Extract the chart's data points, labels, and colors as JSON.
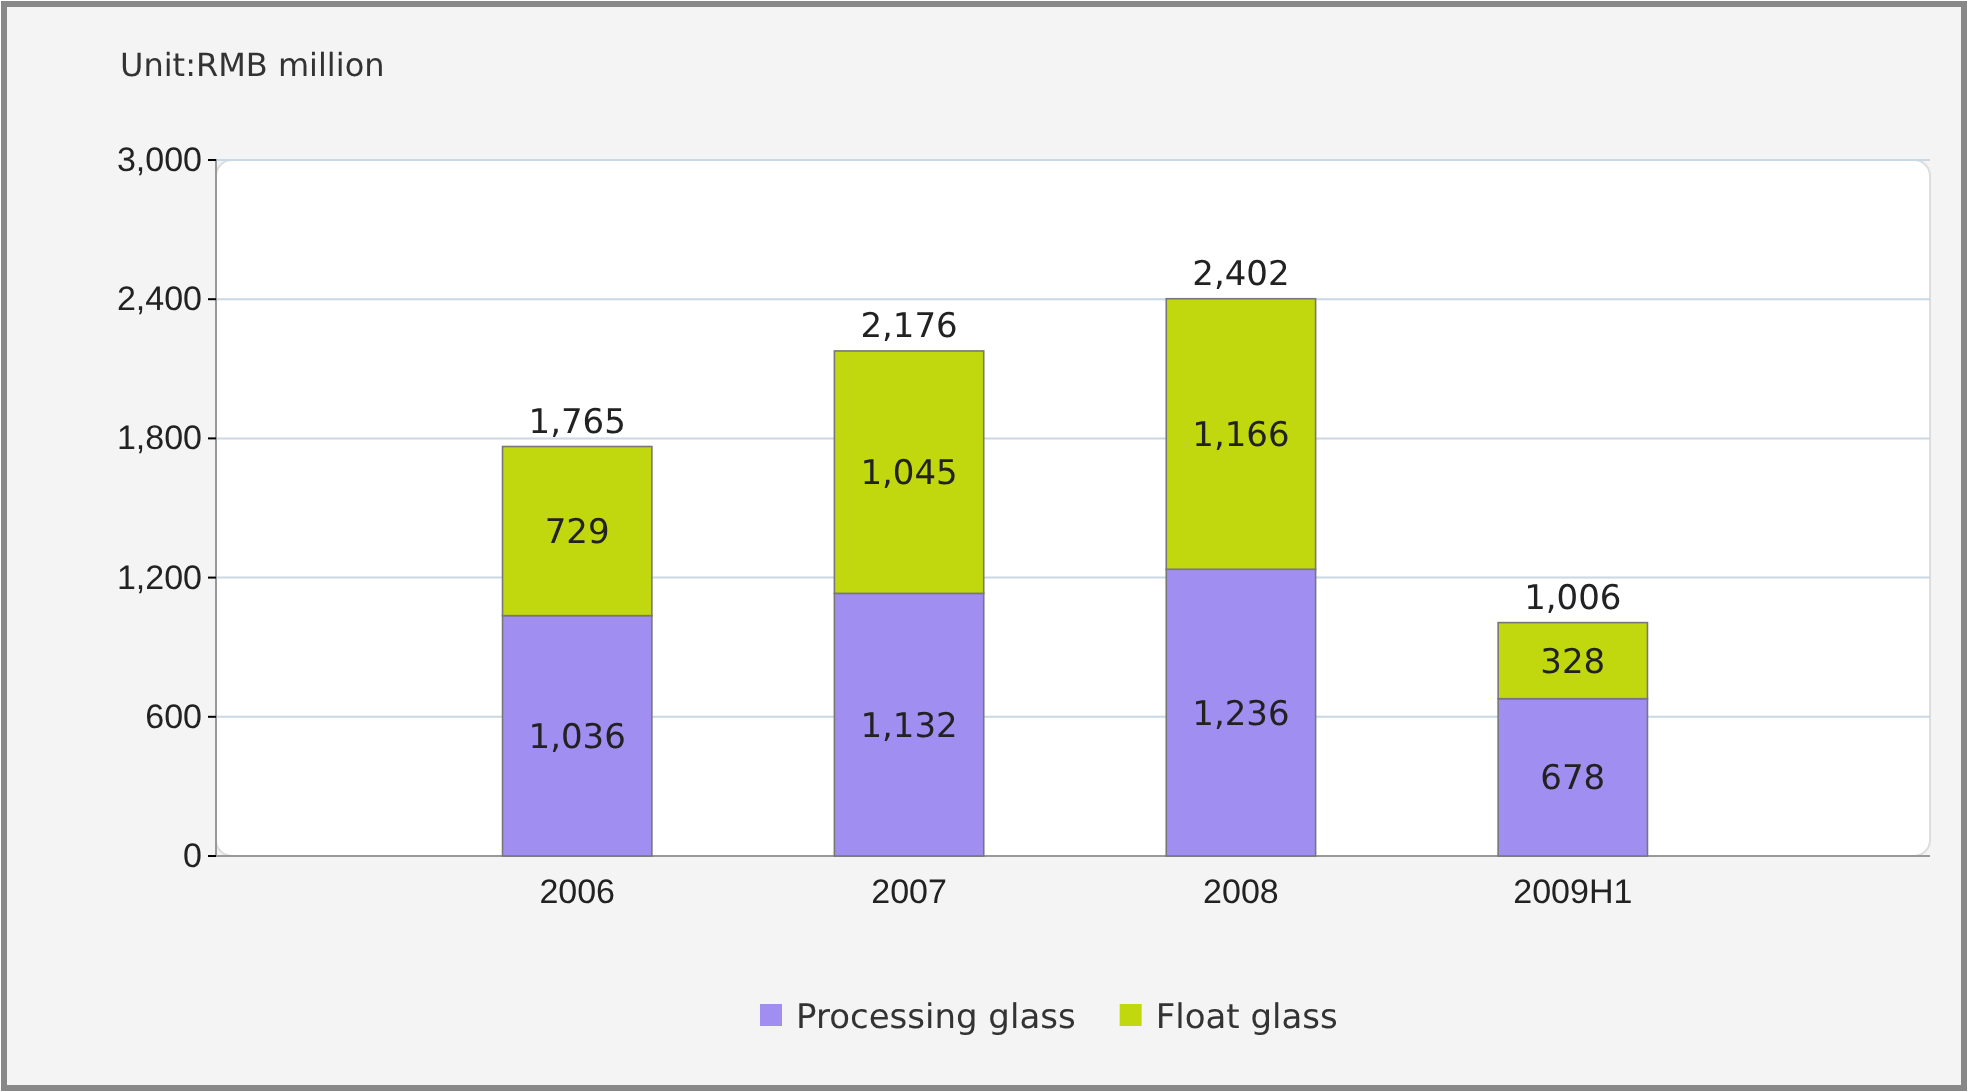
{
  "chart_data": {
    "type": "bar",
    "ylabel": "Unit:RMB million",
    "categories": [
      "2006",
      "2007",
      "2008",
      "2009H1"
    ],
    "series": [
      {
        "name": "Processing glass",
        "color": "#a08ff0",
        "values": [
          1036,
          1132,
          1236,
          678
        ],
        "value_labels": [
          "1,036",
          "1,132",
          "1,236",
          "678"
        ]
      },
      {
        "name": "Float glass",
        "color": "#c2d80e",
        "values": [
          729,
          1045,
          1166,
          328
        ],
        "value_labels": [
          "729",
          "1,045",
          "1,166",
          "328"
        ]
      }
    ],
    "stacked": true,
    "totals": [
      "1,765",
      "2,176",
      "2,402",
      "1,006"
    ],
    "ylim": [
      0,
      3000
    ],
    "yticks": [
      0,
      600,
      {
        "value": 1200,
        "label": "1,200"
      },
      {
        "value": 1800,
        "label": "1,800"
      },
      {
        "value": 2400,
        "label": "2,400"
      },
      {
        "value": 3000,
        "label": "3,000"
      }
    ],
    "grid": "y",
    "legend": "bottom"
  }
}
